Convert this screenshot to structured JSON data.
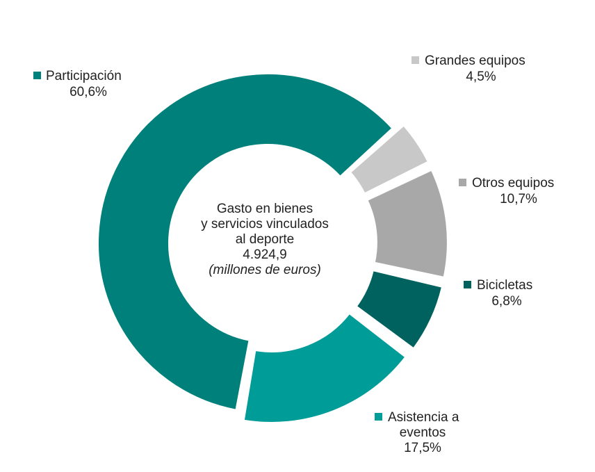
{
  "chart_data": {
    "type": "pie",
    "center": {
      "line1": "Gasto en bienes",
      "line2": "y servicios vinculados",
      "line3": "al deporte",
      "value": "4.924,9",
      "unit": "(millones de euros)"
    },
    "series": [
      {
        "id": "participacion",
        "name": "Participación",
        "label": "60,6%",
        "value": 60.6,
        "color": "#00807a",
        "highlight": false
      },
      {
        "id": "grandes-equipos",
        "name": "Grandes equipos",
        "label": "4,5%",
        "value": 4.5,
        "color": "#c8c8c8",
        "highlight": true
      },
      {
        "id": "otros-equipos",
        "name": "Otros equipos",
        "label": "10,7%",
        "value": 10.7,
        "color": "#a8a8a8",
        "highlight": true
      },
      {
        "id": "bicicletas",
        "name": "Bicicletas",
        "label": "6,8%",
        "value": 6.8,
        "color": "#00625e",
        "highlight": true
      },
      {
        "id": "asistencia",
        "name": "Asistencia a",
        "name2": "eventos",
        "label": "17,5%",
        "value": 17.5,
        "color": "#009c98",
        "highlight": true
      }
    ]
  }
}
